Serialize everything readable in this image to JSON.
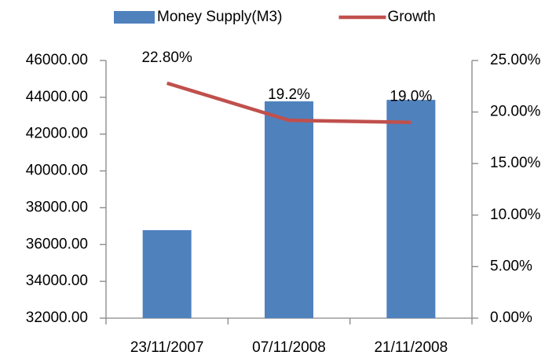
{
  "chart_data": {
    "type": "bar",
    "categories": [
      "23/11/2007",
      "07/11/2008",
      "21/11/2008"
    ],
    "series": [
      {
        "name": "Money Supply(M3)",
        "type": "bar",
        "color": "#4f81bd",
        "values": [
          36780,
          43780,
          43860
        ]
      },
      {
        "name": "Growth",
        "type": "line",
        "axis": "y2",
        "color": "#c0504d",
        "values": [
          22.8,
          19.2,
          19.0
        ],
        "value_labels": [
          "22.80%",
          "19.2%",
          "19.0%"
        ]
      }
    ],
    "ylim": [
      32000,
      46000
    ],
    "yticks": [
      {
        "value": 32000,
        "label": "32000.00"
      },
      {
        "value": 34000,
        "label": "34000.00"
      },
      {
        "value": 36000,
        "label": "36000.00"
      },
      {
        "value": 38000,
        "label": "38000.00"
      },
      {
        "value": 40000,
        "label": "40000.00"
      },
      {
        "value": 42000,
        "label": "42000.00"
      },
      {
        "value": 44000,
        "label": "44000.00"
      },
      {
        "value": 46000,
        "label": "46000.00"
      }
    ],
    "y2lim": [
      0,
      25
    ],
    "y2ticks": [
      {
        "value": 0,
        "label": "0.00%"
      },
      {
        "value": 5,
        "label": "5.00%"
      },
      {
        "value": 10,
        "label": "10.00%"
      },
      {
        "value": 15,
        "label": "15.00%"
      },
      {
        "value": 20,
        "label": "20.00%"
      },
      {
        "value": 25,
        "label": "25.00%"
      }
    ],
    "grid": false,
    "legend": "top"
  }
}
